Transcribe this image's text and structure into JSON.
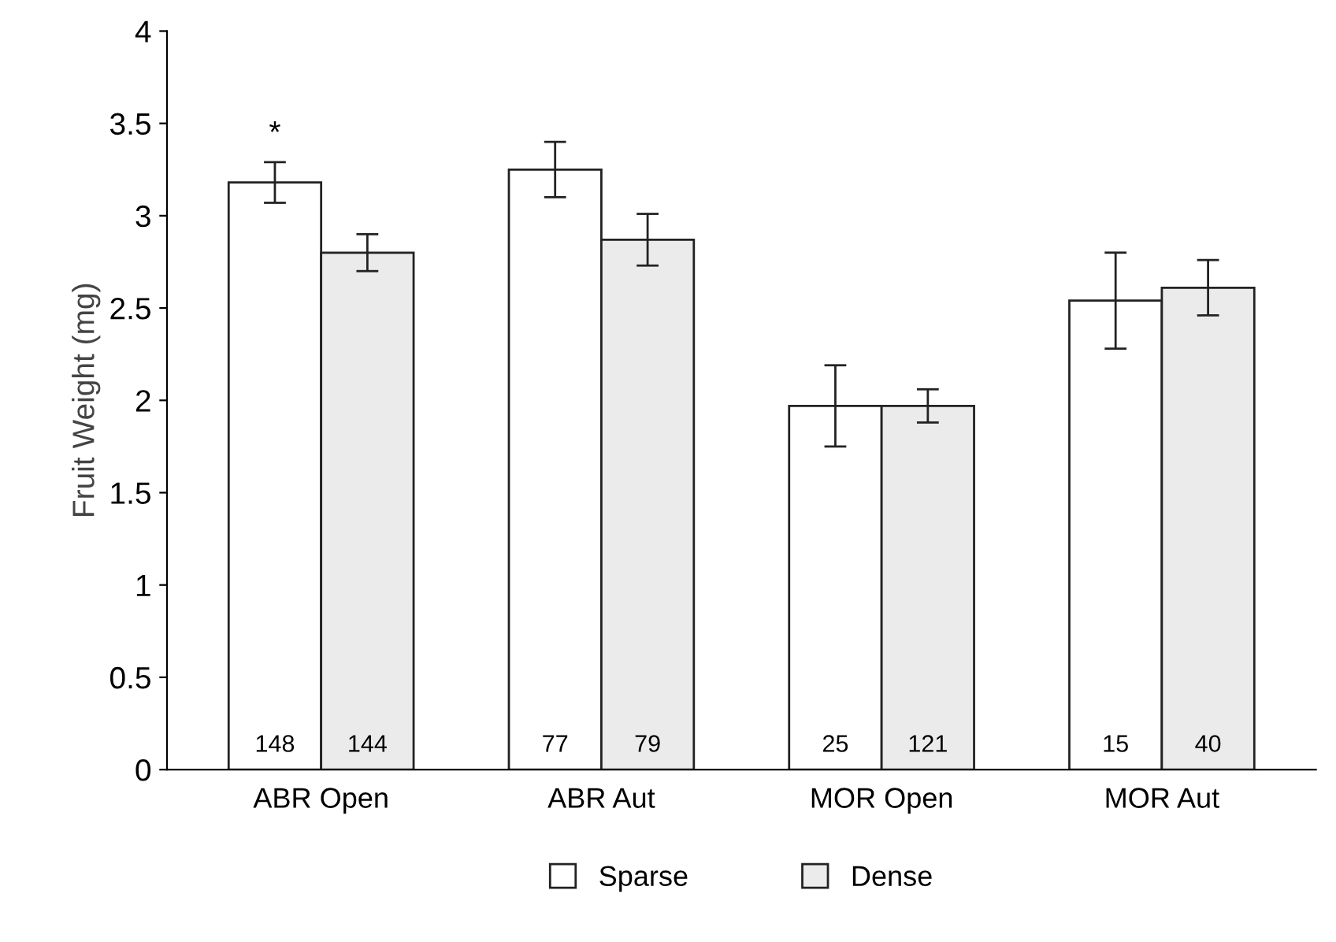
{
  "chart_data": {
    "type": "bar",
    "ylabel": "Fruit Weight (mg)",
    "categories": [
      "ABR Open",
      "ABR Aut",
      "MOR Open",
      "MOR Aut"
    ],
    "series": [
      {
        "name": "Sparse",
        "color": "#ffffff",
        "values": [
          3.18,
          3.25,
          1.97,
          2.54
        ],
        "errors": [
          0.11,
          0.15,
          0.22,
          0.26
        ]
      },
      {
        "name": "Dense",
        "color": "#ebebeb",
        "values": [
          2.8,
          2.87,
          1.97,
          2.61
        ],
        "errors": [
          0.1,
          0.14,
          0.09,
          0.15
        ]
      }
    ],
    "ylim": [
      0,
      4
    ],
    "yticks": [
      0,
      0.5,
      1,
      1.5,
      2,
      2.5,
      3,
      3.5,
      4
    ],
    "grid": false,
    "legend": "bottom",
    "annotations": [
      "148",
      "144",
      "77",
      "79",
      "25",
      "121",
      "15",
      "40",
      "*"
    ]
  }
}
